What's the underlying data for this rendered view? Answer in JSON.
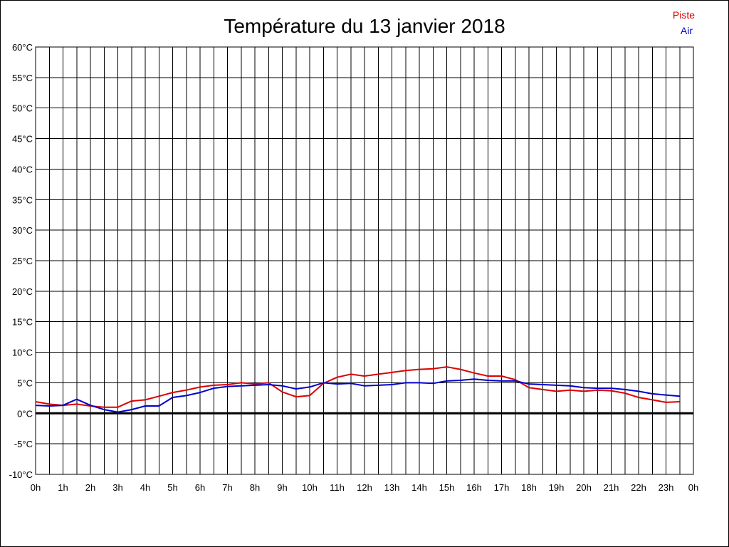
{
  "chart_data": {
    "type": "line",
    "title": "Température du 13 janvier 2018",
    "xlabel": "",
    "ylabel": "",
    "ylim": [
      -10,
      60
    ],
    "xlim": [
      0,
      24
    ],
    "grid": true,
    "legend_placement": "top-right",
    "y_ticks": [
      {
        "value": 60,
        "label": "60°C"
      },
      {
        "value": 55,
        "label": "55°C"
      },
      {
        "value": 50,
        "label": "50°C"
      },
      {
        "value": 45,
        "label": "45°C"
      },
      {
        "value": 40,
        "label": "40°C"
      },
      {
        "value": 35,
        "label": "35°C"
      },
      {
        "value": 30,
        "label": "30°C"
      },
      {
        "value": 25,
        "label": "25°C"
      },
      {
        "value": 20,
        "label": "20°C"
      },
      {
        "value": 15,
        "label": "15°C"
      },
      {
        "value": 10,
        "label": "10°C"
      },
      {
        "value": 5,
        "label": "5°C"
      },
      {
        "value": 0,
        "label": "0°C"
      },
      {
        "value": -5,
        "label": "-5°C"
      },
      {
        "value": -10,
        "label": "-10°C"
      }
    ],
    "x_ticks": [
      {
        "value": 0,
        "label": "0h"
      },
      {
        "value": 1,
        "label": "1h"
      },
      {
        "value": 2,
        "label": "2h"
      },
      {
        "value": 3,
        "label": "3h"
      },
      {
        "value": 4,
        "label": "4h"
      },
      {
        "value": 5,
        "label": "5h"
      },
      {
        "value": 6,
        "label": "6h"
      },
      {
        "value": 7,
        "label": "7h"
      },
      {
        "value": 8,
        "label": "8h"
      },
      {
        "value": 9,
        "label": "9h"
      },
      {
        "value": 10,
        "label": "10h"
      },
      {
        "value": 11,
        "label": "11h"
      },
      {
        "value": 12,
        "label": "12h"
      },
      {
        "value": 13,
        "label": "13h"
      },
      {
        "value": 14,
        "label": "14h"
      },
      {
        "value": 15,
        "label": "15h"
      },
      {
        "value": 16,
        "label": "16h"
      },
      {
        "value": 17,
        "label": "17h"
      },
      {
        "value": 18,
        "label": "18h"
      },
      {
        "value": 19,
        "label": "19h"
      },
      {
        "value": 20,
        "label": "20h"
      },
      {
        "value": 21,
        "label": "21h"
      },
      {
        "value": 22,
        "label": "22h"
      },
      {
        "value": 23,
        "label": "23h"
      },
      {
        "value": 24,
        "label": "0h"
      }
    ],
    "x": [
      0,
      0.5,
      1,
      1.5,
      2,
      2.5,
      3,
      3.5,
      4,
      4.5,
      5,
      5.5,
      6,
      6.5,
      7,
      7.5,
      8,
      8.5,
      9,
      9.5,
      10,
      10.5,
      11,
      11.5,
      12,
      12.5,
      13,
      13.5,
      14,
      14.5,
      15,
      15.5,
      16,
      16.5,
      17,
      17.5,
      18,
      18.5,
      19,
      19.5,
      20,
      20.5,
      21,
      21.5,
      22,
      22.5,
      23,
      23.5
    ],
    "series": [
      {
        "name": "Piste",
        "color": "#dd0000",
        "values": [
          1.9,
          1.5,
          1.3,
          1.5,
          1.2,
          1.0,
          1.0,
          2.0,
          2.2,
          2.8,
          3.4,
          3.8,
          4.3,
          4.6,
          4.7,
          5.0,
          4.8,
          5.0,
          3.5,
          2.7,
          2.9,
          4.9,
          5.9,
          6.4,
          6.1,
          6.4,
          6.7,
          7.0,
          7.2,
          7.3,
          7.6,
          7.2,
          6.6,
          6.1,
          6.1,
          5.5,
          4.2,
          3.9,
          3.6,
          3.8,
          3.6,
          3.8,
          3.7,
          3.3,
          2.6,
          2.2,
          1.8,
          1.9
        ]
      },
      {
        "name": "Air",
        "color": "#0000cc",
        "values": [
          1.3,
          1.2,
          1.3,
          2.3,
          1.3,
          0.6,
          0.2,
          0.6,
          1.2,
          1.2,
          2.6,
          2.9,
          3.4,
          4.1,
          4.4,
          4.5,
          4.6,
          4.7,
          4.5,
          4.0,
          4.3,
          5.0,
          4.8,
          4.9,
          4.5,
          4.6,
          4.7,
          5.0,
          5.0,
          4.9,
          5.3,
          5.4,
          5.6,
          5.4,
          5.3,
          5.3,
          4.8,
          4.7,
          4.6,
          4.5,
          4.2,
          4.1,
          4.1,
          3.9,
          3.6,
          3.2,
          3.0,
          2.8
        ]
      }
    ]
  }
}
